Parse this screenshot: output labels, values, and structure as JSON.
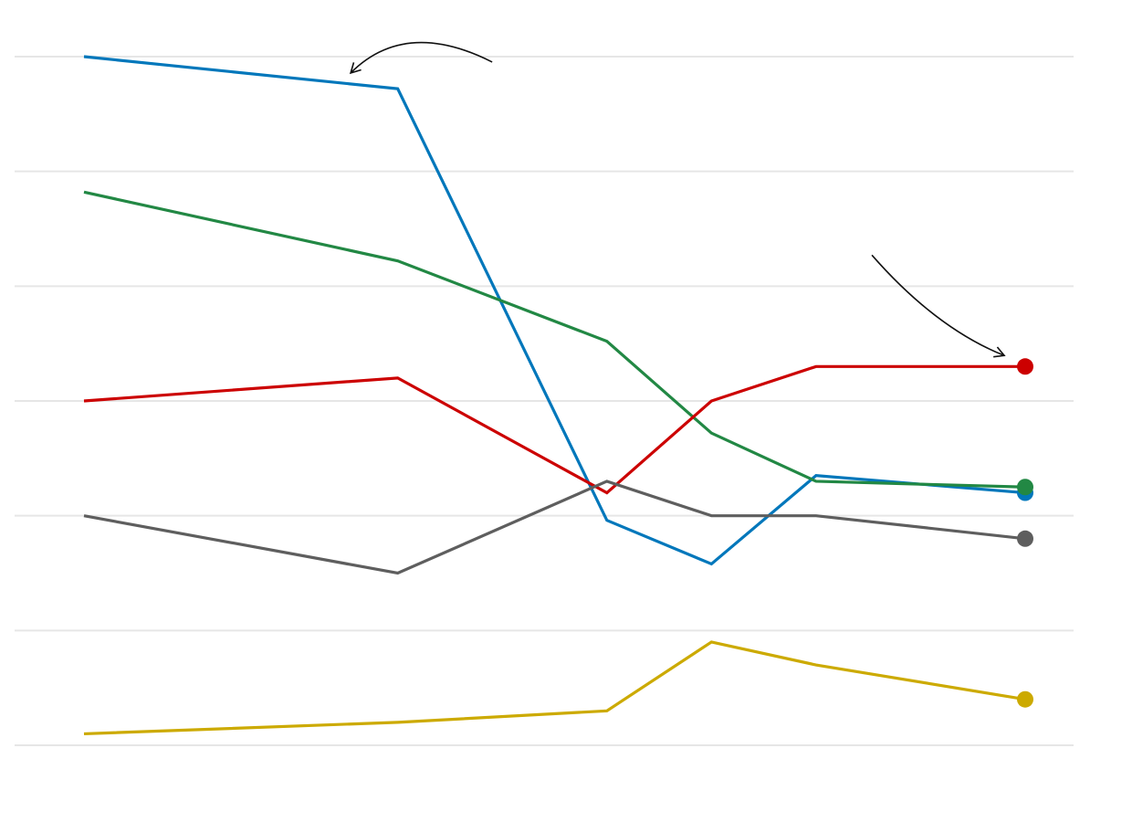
{
  "chart_data": {
    "type": "line",
    "x": [
      1,
      4,
      6,
      7,
      8,
      10
    ],
    "ylim": [
      0,
      6
    ],
    "grid": true,
    "legend": "none",
    "series": [
      {
        "color": "#0077bb",
        "values": [
          6.0,
          5.72,
          1.96,
          1.58,
          2.35,
          2.2
        ]
      },
      {
        "color": "#228844",
        "values": [
          4.82,
          4.22,
          3.52,
          2.72,
          2.3,
          2.25
        ]
      },
      {
        "color": "#cc0000",
        "values": [
          3.0,
          3.2,
          2.2,
          3.0,
          3.3,
          3.3
        ]
      },
      {
        "color": "#5e5e5e",
        "values": [
          2.0,
          1.5,
          2.3,
          2.0,
          2.0,
          1.8
        ]
      },
      {
        "color": "#ccaa00",
        "values": [
          0.1,
          0.2,
          0.3,
          0.9,
          0.7,
          0.4
        ]
      }
    ],
    "annotations": [
      {
        "type": "curved-arrow",
        "target_series": 0,
        "target_x": 3.55
      },
      {
        "type": "curved-arrow",
        "target_series": 2,
        "target_x": 9.8
      }
    ]
  }
}
